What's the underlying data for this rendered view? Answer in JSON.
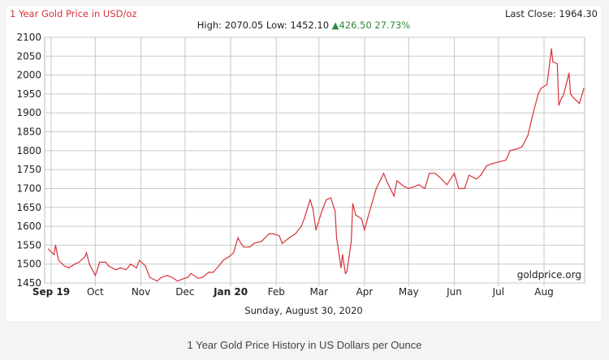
{
  "header": {
    "title": "1 Year Gold Price in USD/oz",
    "last_close": "Last Close: 1964.30",
    "high_low": "High: 2070.05 Low: 1452.10 ",
    "change": "▲426.50 27.73%"
  },
  "footer": {
    "date": "Sunday, August 30, 2020",
    "caption": "1 Year Gold Price History in US Dollars per Ounce"
  },
  "chart_data": {
    "type": "line",
    "title": "1 Year Gold Price in USD/oz",
    "xlabel": "",
    "ylabel": "",
    "ylim": [
      1450,
      2100
    ],
    "grid": true,
    "yticks": [
      1450,
      1500,
      1550,
      1600,
      1650,
      1700,
      1750,
      1800,
      1850,
      1900,
      1950,
      2000,
      2050,
      2100
    ],
    "xticks": [
      {
        "label": "Sep 19",
        "date": "2019-09-01",
        "bold": true
      },
      {
        "label": "Oct",
        "date": "2019-10-01"
      },
      {
        "label": "Nov",
        "date": "2019-11-01"
      },
      {
        "label": "Dec",
        "date": "2019-12-01"
      },
      {
        "label": "Jan 20",
        "date": "2020-01-01",
        "bold": true
      },
      {
        "label": "Feb",
        "date": "2020-02-01"
      },
      {
        "label": "Mar",
        "date": "2020-03-01"
      },
      {
        "label": "Apr",
        "date": "2020-04-01"
      },
      {
        "label": "May",
        "date": "2020-05-01"
      },
      {
        "label": "Jun",
        "date": "2020-06-01"
      },
      {
        "label": "Jul",
        "date": "2020-07-01"
      },
      {
        "label": "Aug",
        "date": "2020-08-01"
      }
    ],
    "watermark": "goldprice.org",
    "line_color": "#d8323a",
    "x": [
      "2019-08-30",
      "2019-09-03",
      "2019-09-04",
      "2019-09-06",
      "2019-09-10",
      "2019-09-13",
      "2019-09-17",
      "2019-09-20",
      "2019-09-24",
      "2019-09-25",
      "2019-09-27",
      "2019-10-01",
      "2019-10-04",
      "2019-10-08",
      "2019-10-10",
      "2019-10-15",
      "2019-10-18",
      "2019-10-22",
      "2019-10-25",
      "2019-10-29",
      "2019-10-31",
      "2019-11-04",
      "2019-11-07",
      "2019-11-12",
      "2019-11-15",
      "2019-11-19",
      "2019-11-22",
      "2019-11-26",
      "2019-11-29",
      "2019-12-03",
      "2019-12-05",
      "2019-12-10",
      "2019-12-13",
      "2019-12-17",
      "2019-12-20",
      "2019-12-24",
      "2019-12-27",
      "2019-12-31",
      "2020-01-03",
      "2020-01-06",
      "2020-01-08",
      "2020-01-10",
      "2020-01-14",
      "2020-01-17",
      "2020-01-22",
      "2020-01-27",
      "2020-01-30",
      "2020-02-03",
      "2020-02-05",
      "2020-02-10",
      "2020-02-14",
      "2020-02-18",
      "2020-02-20",
      "2020-02-24",
      "2020-02-26",
      "2020-02-28",
      "2020-03-03",
      "2020-03-06",
      "2020-03-09",
      "2020-03-12",
      "2020-03-13",
      "2020-03-16",
      "2020-03-17",
      "2020-03-19",
      "2020-03-20",
      "2020-03-23",
      "2020-03-24",
      "2020-03-26",
      "2020-03-30",
      "2020-04-01",
      "2020-04-03",
      "2020-04-06",
      "2020-04-09",
      "2020-04-14",
      "2020-04-16",
      "2020-04-21",
      "2020-04-23",
      "2020-04-28",
      "2020-05-01",
      "2020-05-05",
      "2020-05-08",
      "2020-05-12",
      "2020-05-15",
      "2020-05-19",
      "2020-05-22",
      "2020-05-27",
      "2020-06-01",
      "2020-06-04",
      "2020-06-08",
      "2020-06-11",
      "2020-06-16",
      "2020-06-19",
      "2020-06-23",
      "2020-06-26",
      "2020-07-01",
      "2020-07-06",
      "2020-07-09",
      "2020-07-14",
      "2020-07-17",
      "2020-07-21",
      "2020-07-24",
      "2020-07-28",
      "2020-07-30",
      "2020-08-03",
      "2020-08-05",
      "2020-08-06",
      "2020-08-07",
      "2020-08-10",
      "2020-08-11",
      "2020-08-13",
      "2020-08-14",
      "2020-08-18",
      "2020-08-19",
      "2020-08-21",
      "2020-08-25",
      "2020-08-27",
      "2020-08-28"
    ],
    "values": [
      1540,
      1525,
      1550,
      1510,
      1495,
      1490,
      1500,
      1505,
      1520,
      1530,
      1500,
      1470,
      1505,
      1505,
      1495,
      1485,
      1490,
      1485,
      1500,
      1490,
      1510,
      1495,
      1465,
      1455,
      1465,
      1470,
      1465,
      1455,
      1460,
      1465,
      1475,
      1462,
      1465,
      1478,
      1478,
      1495,
      1510,
      1520,
      1530,
      1570,
      1555,
      1545,
      1545,
      1555,
      1560,
      1580,
      1580,
      1575,
      1555,
      1570,
      1580,
      1600,
      1620,
      1670,
      1645,
      1590,
      1640,
      1670,
      1675,
      1640,
      1570,
      1490,
      1525,
      1475,
      1480,
      1560,
      1660,
      1630,
      1620,
      1590,
      1620,
      1660,
      1700,
      1740,
      1720,
      1680,
      1720,
      1705,
      1700,
      1705,
      1710,
      1700,
      1740,
      1740,
      1730,
      1710,
      1740,
      1700,
      1700,
      1735,
      1725,
      1735,
      1760,
      1765,
      1770,
      1775,
      1800,
      1805,
      1810,
      1840,
      1890,
      1950,
      1965,
      1975,
      2035,
      2070,
      2035,
      2030,
      1920,
      1940,
      1945,
      2005,
      1950,
      1940,
      1925,
      1950,
      1964.3
    ]
  }
}
